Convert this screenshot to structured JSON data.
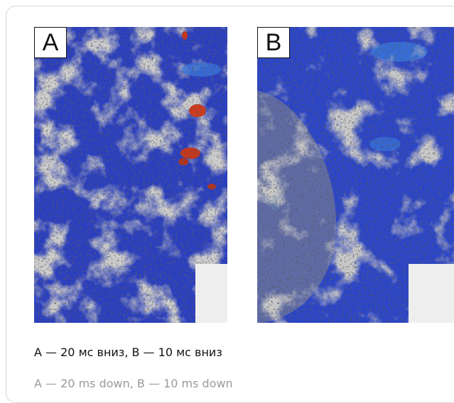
{
  "figure": {
    "panels": [
      {
        "label": "A"
      },
      {
        "label": "B"
      }
    ],
    "caption": "A — 20 мс вниз, B — 10 мс вниз",
    "caption_translation": "A — 20 ms down, B — 10 ms down"
  }
}
